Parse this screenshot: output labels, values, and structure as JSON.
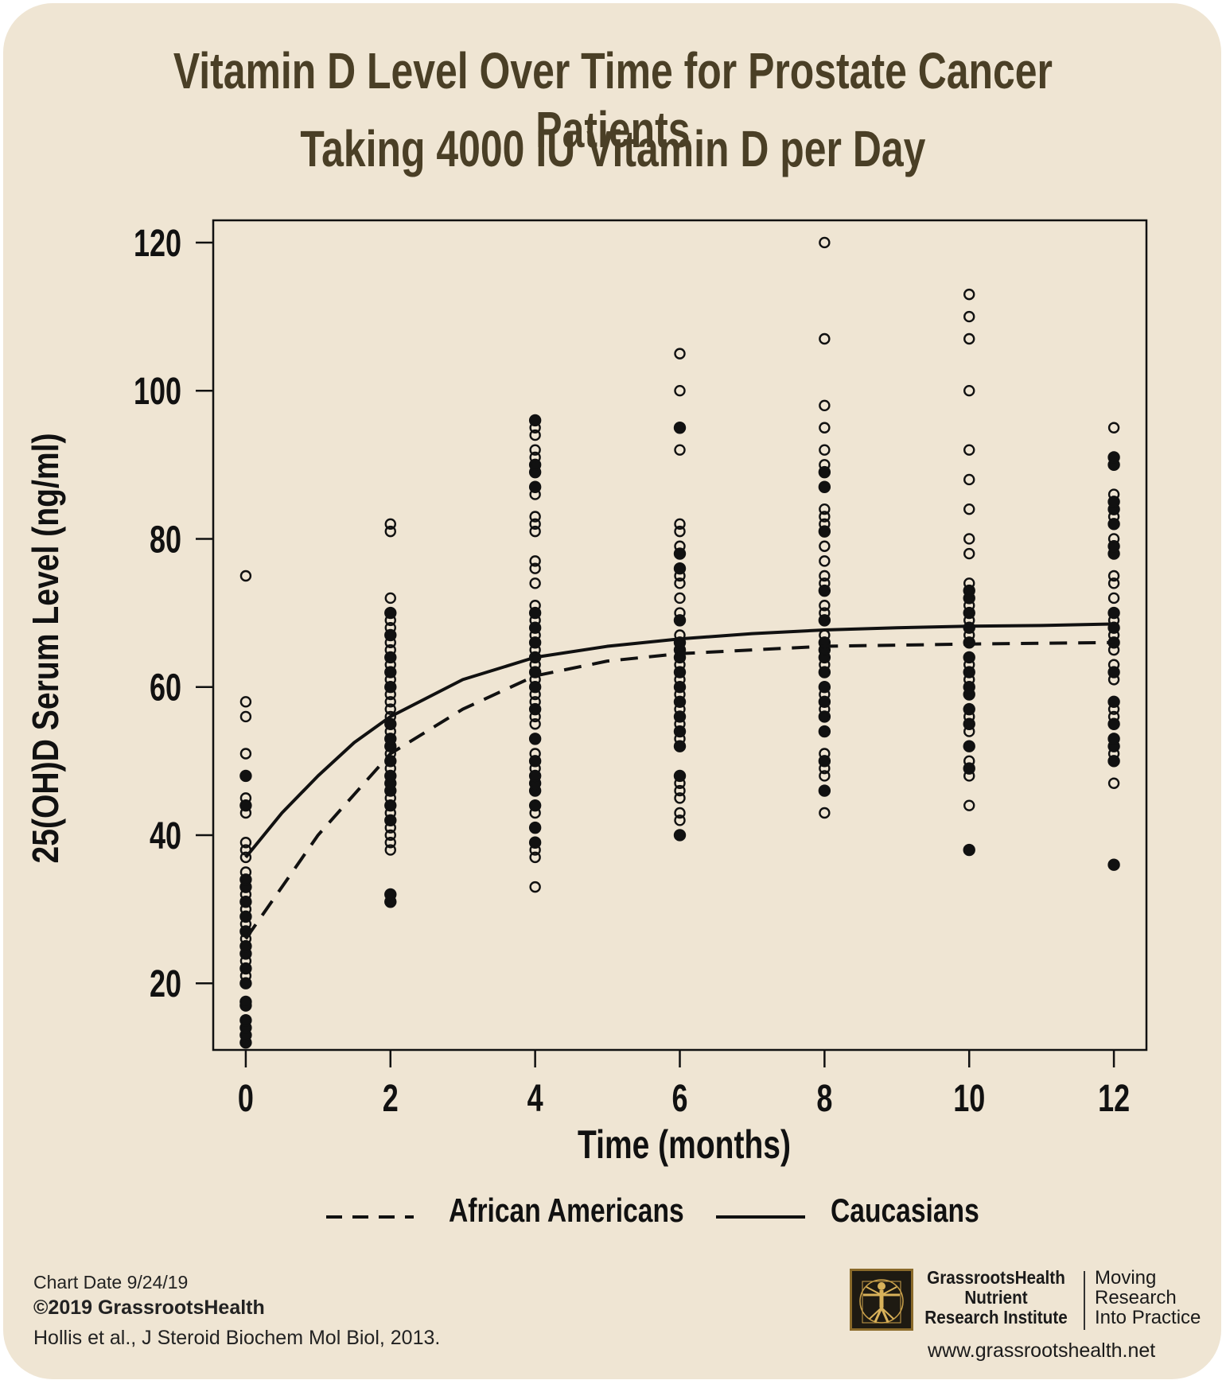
{
  "title": {
    "line1": "Vitamin D Level Over Time for Prostate Cancer Patients",
    "line2": "Taking 4000 IU Vitamin D per Day"
  },
  "footer": {
    "chart_date": "Chart Date 9/24/19",
    "copyright": "©2019 GrassrootsHealth",
    "citation": "Hollis et al., J Steroid Biochem Mol Biol, 2013."
  },
  "branding": {
    "org_line1": "GrassrootsHealth",
    "org_line2": "Nutrient",
    "org_line3": "Research Institute",
    "tagline_line1": "Moving",
    "tagline_line2": "Research",
    "tagline_line3": "Into Practice",
    "website": "www.grassrootshealth.net",
    "logo_icon": "vitruvian-man-icon"
  },
  "colors": {
    "background": "#efe5d3",
    "title": "#4a3f26",
    "ink": "#111111"
  },
  "chart_data": {
    "type": "scatter",
    "xlabel": "Time (months)",
    "ylabel": "25(OH)D Serum Level (ng/ml)",
    "xlim": [
      -0.45,
      12.45
    ],
    "ylim": [
      11,
      123
    ],
    "xticks": [
      0,
      2,
      4,
      6,
      8,
      10,
      12
    ],
    "yticks": [
      20,
      40,
      60,
      80,
      100,
      120
    ],
    "legend": {
      "placement": "bottom",
      "entries": [
        "African Americans",
        "Caucasians"
      ]
    },
    "grid": false,
    "series": [
      {
        "name": "African Americans",
        "marker": "filled-circle",
        "line_style": "dashed",
        "fit_curve": {
          "x": [
            0,
            0.25,
            0.5,
            1,
            1.5,
            2,
            3,
            4,
            5,
            6,
            7,
            8,
            10,
            12
          ],
          "y": [
            26,
            29.5,
            33,
            40,
            45.5,
            51,
            57,
            61.5,
            63.5,
            64.5,
            65,
            65.5,
            65.8,
            66
          ]
        },
        "points": [
          {
            "x": 0,
            "y": [
              12,
              13,
              14,
              15,
              17,
              17.5,
              20,
              22,
              24,
              25,
              27,
              29,
              31,
              33,
              34,
              44,
              48
            ]
          },
          {
            "x": 2,
            "y": [
              31,
              32,
              42,
              44,
              46,
              47,
              48,
              50,
              52,
              53,
              55,
              60,
              62,
              64,
              67,
              70
            ]
          },
          {
            "x": 4,
            "y": [
              39,
              41,
              44,
              46,
              47,
              48,
              50,
              53,
              57,
              60,
              62,
              64,
              66,
              68,
              70,
              87,
              89,
              90,
              96
            ]
          },
          {
            "x": 6,
            "y": [
              40,
              48,
              52,
              54,
              56,
              58,
              60,
              62,
              64,
              65,
              66,
              69,
              76,
              78,
              95
            ]
          },
          {
            "x": 8,
            "y": [
              46,
              50,
              54,
              56,
              58,
              60,
              62,
              64,
              65,
              66,
              69,
              73,
              81,
              87,
              89
            ]
          },
          {
            "x": 10,
            "y": [
              38,
              49,
              52,
              55,
              57,
              59,
              60,
              62,
              64,
              66,
              68,
              70,
              72,
              73
            ]
          },
          {
            "x": 12,
            "y": [
              36,
              50,
              52,
              53,
              55,
              58,
              62,
              66,
              68,
              70,
              78,
              79,
              82,
              84,
              85,
              90,
              91
            ]
          }
        ]
      },
      {
        "name": "Caucasians",
        "marker": "open-circle",
        "line_style": "solid",
        "fit_curve": {
          "x": [
            0,
            0.25,
            0.5,
            1,
            1.5,
            2,
            3,
            4,
            5,
            6,
            7,
            8,
            9,
            10,
            11,
            12
          ],
          "y": [
            37,
            40,
            43,
            48,
            52.5,
            56,
            61,
            64,
            65.5,
            66.5,
            67.2,
            67.7,
            68,
            68.2,
            68.3,
            68.5
          ]
        },
        "points": [
          {
            "x": 0,
            "y": [
              21,
              23,
              26,
              28,
              30,
              32,
              35,
              37,
              38,
              39,
              43,
              45,
              51,
              56,
              58,
              75
            ]
          },
          {
            "x": 2,
            "y": [
              38,
              39,
              40,
              41,
              43,
              45,
              49,
              51,
              54,
              56,
              57,
              58,
              59,
              61,
              63,
              65,
              66,
              68,
              69,
              72,
              81,
              82
            ]
          },
          {
            "x": 4,
            "y": [
              33,
              37,
              38,
              43,
              49,
              51,
              53,
              55,
              56,
              58,
              59,
              61,
              63,
              65,
              67,
              69,
              71,
              74,
              76,
              77,
              81,
              82,
              83,
              86,
              91,
              92,
              94,
              95
            ]
          },
          {
            "x": 6,
            "y": [
              42,
              43,
              45,
              46,
              47,
              53,
              55,
              57,
              59,
              61,
              63,
              67,
              70,
              72,
              74,
              75,
              79,
              81,
              82,
              92,
              95,
              100,
              105
            ]
          },
          {
            "x": 8,
            "y": [
              43,
              48,
              49,
              51,
              57,
              59,
              63,
              67,
              70,
              71,
              74,
              75,
              77,
              79,
              82,
              83,
              84,
              90,
              92,
              95,
              98,
              107,
              120
            ]
          },
          {
            "x": 10,
            "y": [
              44,
              48,
              50,
              54,
              56,
              61,
              63,
              67,
              69,
              71,
              74,
              78,
              80,
              84,
              88,
              92,
              100,
              107,
              110,
              113
            ]
          },
          {
            "x": 12,
            "y": [
              47,
              51,
              56,
              57,
              61,
              63,
              65,
              67,
              69,
              72,
              74,
              75,
              78,
              80,
              82,
              83,
              86,
              90,
              95
            ]
          }
        ]
      }
    ]
  }
}
